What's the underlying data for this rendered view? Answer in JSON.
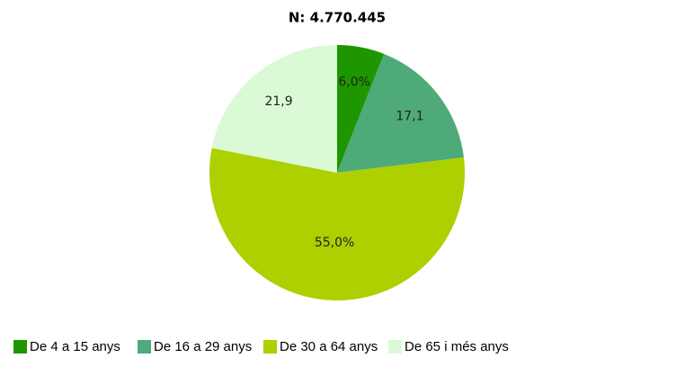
{
  "chart_data": {
    "type": "pie",
    "title": "N: 4.770.445",
    "categories": [
      "De 4 a 15 anys",
      "De 16 a 29 anys",
      "De 30 a 64 anys",
      "De 65 i més anys"
    ],
    "values": [
      6.0,
      17.1,
      55.0,
      21.9
    ],
    "value_labels": [
      "6,0%",
      "17,1",
      "55,0%",
      "21,9"
    ],
    "colors": [
      "#1e9600",
      "#4eaa78",
      "#acd000",
      "#d9fad5"
    ],
    "legend": "bottom"
  }
}
